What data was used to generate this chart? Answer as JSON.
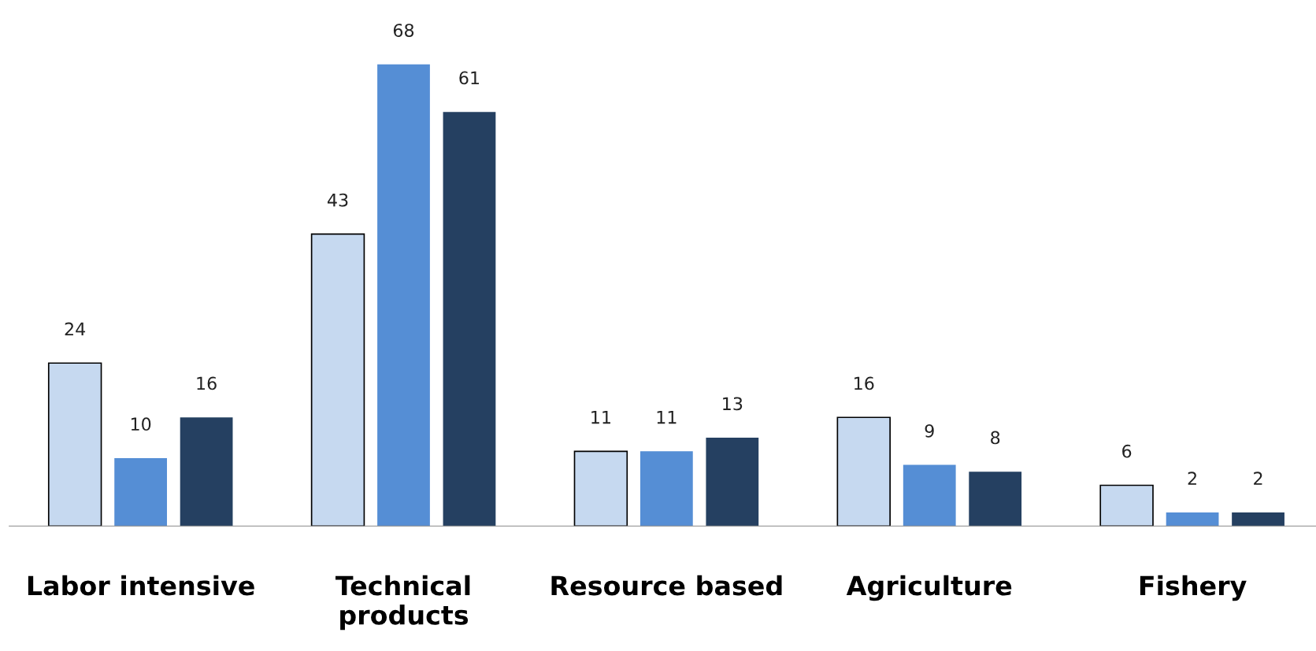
{
  "chart_data": {
    "type": "bar",
    "categories": [
      "Labor intensive",
      "Technical\nproducts",
      "Resource based",
      "Agriculture",
      "Fishery"
    ],
    "series": [
      {
        "color": "#c6d9f0",
        "values": [
          24,
          43,
          11,
          16,
          6
        ]
      },
      {
        "color": "#558ed5",
        "values": [
          10,
          68,
          11,
          9,
          2
        ]
      },
      {
        "color": "#254061",
        "values": [
          16,
          61,
          13,
          8,
          2
        ]
      }
    ],
    "data_labels": true,
    "legend": false,
    "grid": false
  }
}
